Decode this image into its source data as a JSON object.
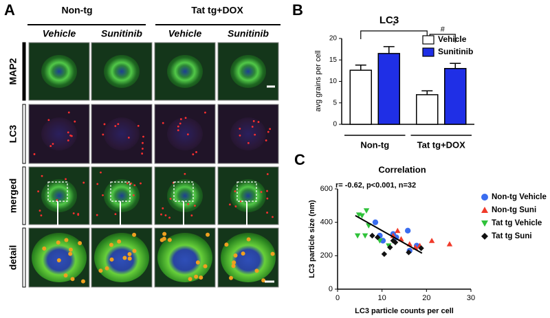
{
  "panel_a": {
    "label": "A",
    "groups": [
      "Non-tg",
      "Tat tg+DOX"
    ],
    "columns": [
      "Vehicle",
      "Sunitinib",
      "Vehicle",
      "Sunitinib"
    ],
    "rows": [
      "MAP2",
      "LC3",
      "merged",
      "detail"
    ]
  },
  "chart_data": [
    {
      "type": "bar",
      "panel_label": "B",
      "title": "LC3",
      "y_label": "avg grains per cell",
      "categories": [
        "Non-tg",
        "Tat tg+DOX"
      ],
      "series": [
        {
          "name": "Vehicle",
          "color": "#ffffff",
          "values": [
            12.6,
            6.9
          ],
          "errors": [
            1.2,
            0.9
          ]
        },
        {
          "name": "Sunitinib",
          "color": "#1f2fe6",
          "values": [
            16.5,
            13.0
          ],
          "errors": [
            1.6,
            1.2
          ]
        }
      ],
      "ylim": [
        0,
        20
      ],
      "yticks": [
        0,
        5,
        10,
        15,
        20
      ],
      "significance": [
        "*",
        "#"
      ]
    },
    {
      "type": "scatter",
      "panel_label": "C",
      "title": "Correlation",
      "annotation": "r= -0.62, p<0.001, n=32",
      "x_label": "LC3 particle counts per cell",
      "y_label": "LC3 particle size (nm)",
      "xlim": [
        0,
        30
      ],
      "xticks": [
        0,
        10,
        20,
        30
      ],
      "ylim": [
        0,
        600
      ],
      "yticks": [
        0,
        200,
        400,
        600
      ],
      "series": [
        {
          "name": "Non-tg Vehicle",
          "color": "#3a6df0",
          "marker": "circle",
          "x": [
            8.5,
            9.5,
            10.2,
            12.5,
            13.2,
            15.8,
            17.8,
            16.2
          ],
          "y": [
            400,
            320,
            290,
            330,
            310,
            350,
            260,
            230
          ]
        },
        {
          "name": "Non-tg Suni",
          "color": "#f03a2a",
          "marker": "triangle-up",
          "x": [
            13.5,
            16.2,
            17.5,
            21.2,
            25.2,
            12.5,
            18.5,
            14.3
          ],
          "y": [
            350,
            270,
            250,
            290,
            270,
            320,
            260,
            300
          ]
        },
        {
          "name": "Tat tg Vehicle",
          "color": "#2fc23a",
          "marker": "triangle-down",
          "x": [
            4.8,
            5.5,
            6.5,
            7.0,
            4.5,
            6.2,
            11.5,
            9.5
          ],
          "y": [
            445,
            440,
            470,
            380,
            320,
            320,
            260,
            290
          ]
        },
        {
          "name": "Tat tg Suni",
          "color": "#111111",
          "marker": "diamond",
          "x": [
            7.8,
            9.0,
            10.5,
            11.8,
            12.5,
            13.0,
            16.0,
            18.8
          ],
          "y": [
            320,
            310,
            210,
            250,
            290,
            280,
            220,
            245
          ]
        }
      ],
      "fit_line": {
        "x": [
          4,
          19
        ],
        "y": [
          440,
          215
        ]
      }
    }
  ]
}
